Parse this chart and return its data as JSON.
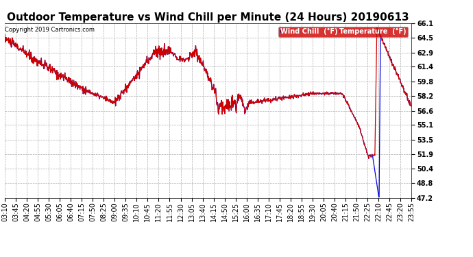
{
  "title": "Outdoor Temperature vs Wind Chill per Minute (24 Hours) 20190613",
  "copyright": "Copyright 2019 Cartronics.com",
  "y_ticks": [
    47.2,
    48.8,
    50.4,
    51.9,
    53.5,
    55.1,
    56.6,
    58.2,
    59.8,
    61.4,
    62.9,
    64.5,
    66.1
  ],
  "ylim": [
    47.2,
    66.1
  ],
  "x_labels": [
    "03:10",
    "03:45",
    "04:20",
    "04:55",
    "05:30",
    "06:05",
    "06:40",
    "07:15",
    "07:50",
    "08:25",
    "09:00",
    "09:35",
    "10:10",
    "10:45",
    "11:20",
    "11:55",
    "12:30",
    "13:05",
    "13:40",
    "14:15",
    "14:50",
    "15:25",
    "16:00",
    "16:35",
    "17:10",
    "17:45",
    "18:20",
    "18:55",
    "19:30",
    "20:05",
    "20:40",
    "21:15",
    "21:50",
    "22:25",
    "22:10",
    "22:45",
    "23:20",
    "23:55"
  ],
  "background_color": "#ffffff",
  "plot_bg_color": "#ffffff",
  "grid_color": "#aaaaaa",
  "temp_color": "#cc0000",
  "wind_color": "#0000dd",
  "title_fontsize": 11,
  "tick_fontsize": 7
}
